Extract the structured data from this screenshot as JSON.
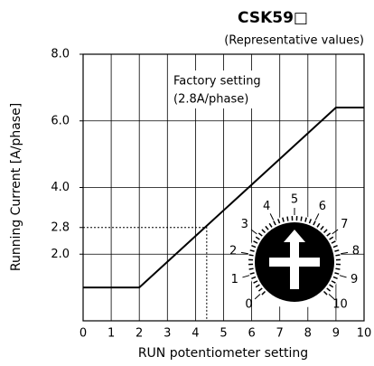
{
  "chart_data": {
    "type": "line",
    "title": "CSK59□",
    "subtitle": "(Representative values)",
    "x_label": "RUN potentiometer setting",
    "y_label": "Running Current [A/phase]",
    "annotation": [
      "Factory setting",
      "(2.8A/phase)"
    ],
    "reference": {
      "x": 4.4,
      "y": 2.8
    },
    "series": [
      {
        "name": "Running Current",
        "color": "#000000",
        "x": [
          0,
          2,
          9,
          10
        ],
        "values": [
          1.0,
          1.0,
          6.4,
          6.4
        ]
      }
    ],
    "xlim": [
      0,
      10
    ],
    "xticks": [
      0,
      1,
      2,
      3,
      4,
      5,
      6,
      7,
      8,
      9,
      10
    ],
    "ylim": [
      0,
      8
    ],
    "yticks": [
      {
        "value": 2,
        "label": "2.0"
      },
      {
        "value": 2.8,
        "label": "2.8"
      },
      {
        "value": 4,
        "label": "4.0"
      },
      {
        "value": 6,
        "label": "6.0"
      },
      {
        "value": 8,
        "label": "8.0"
      }
    ],
    "grid": true,
    "dial_labels": [
      "0",
      "1",
      "2",
      "3",
      "4",
      "5",
      "6",
      "7",
      "8",
      "9",
      "10"
    ]
  }
}
